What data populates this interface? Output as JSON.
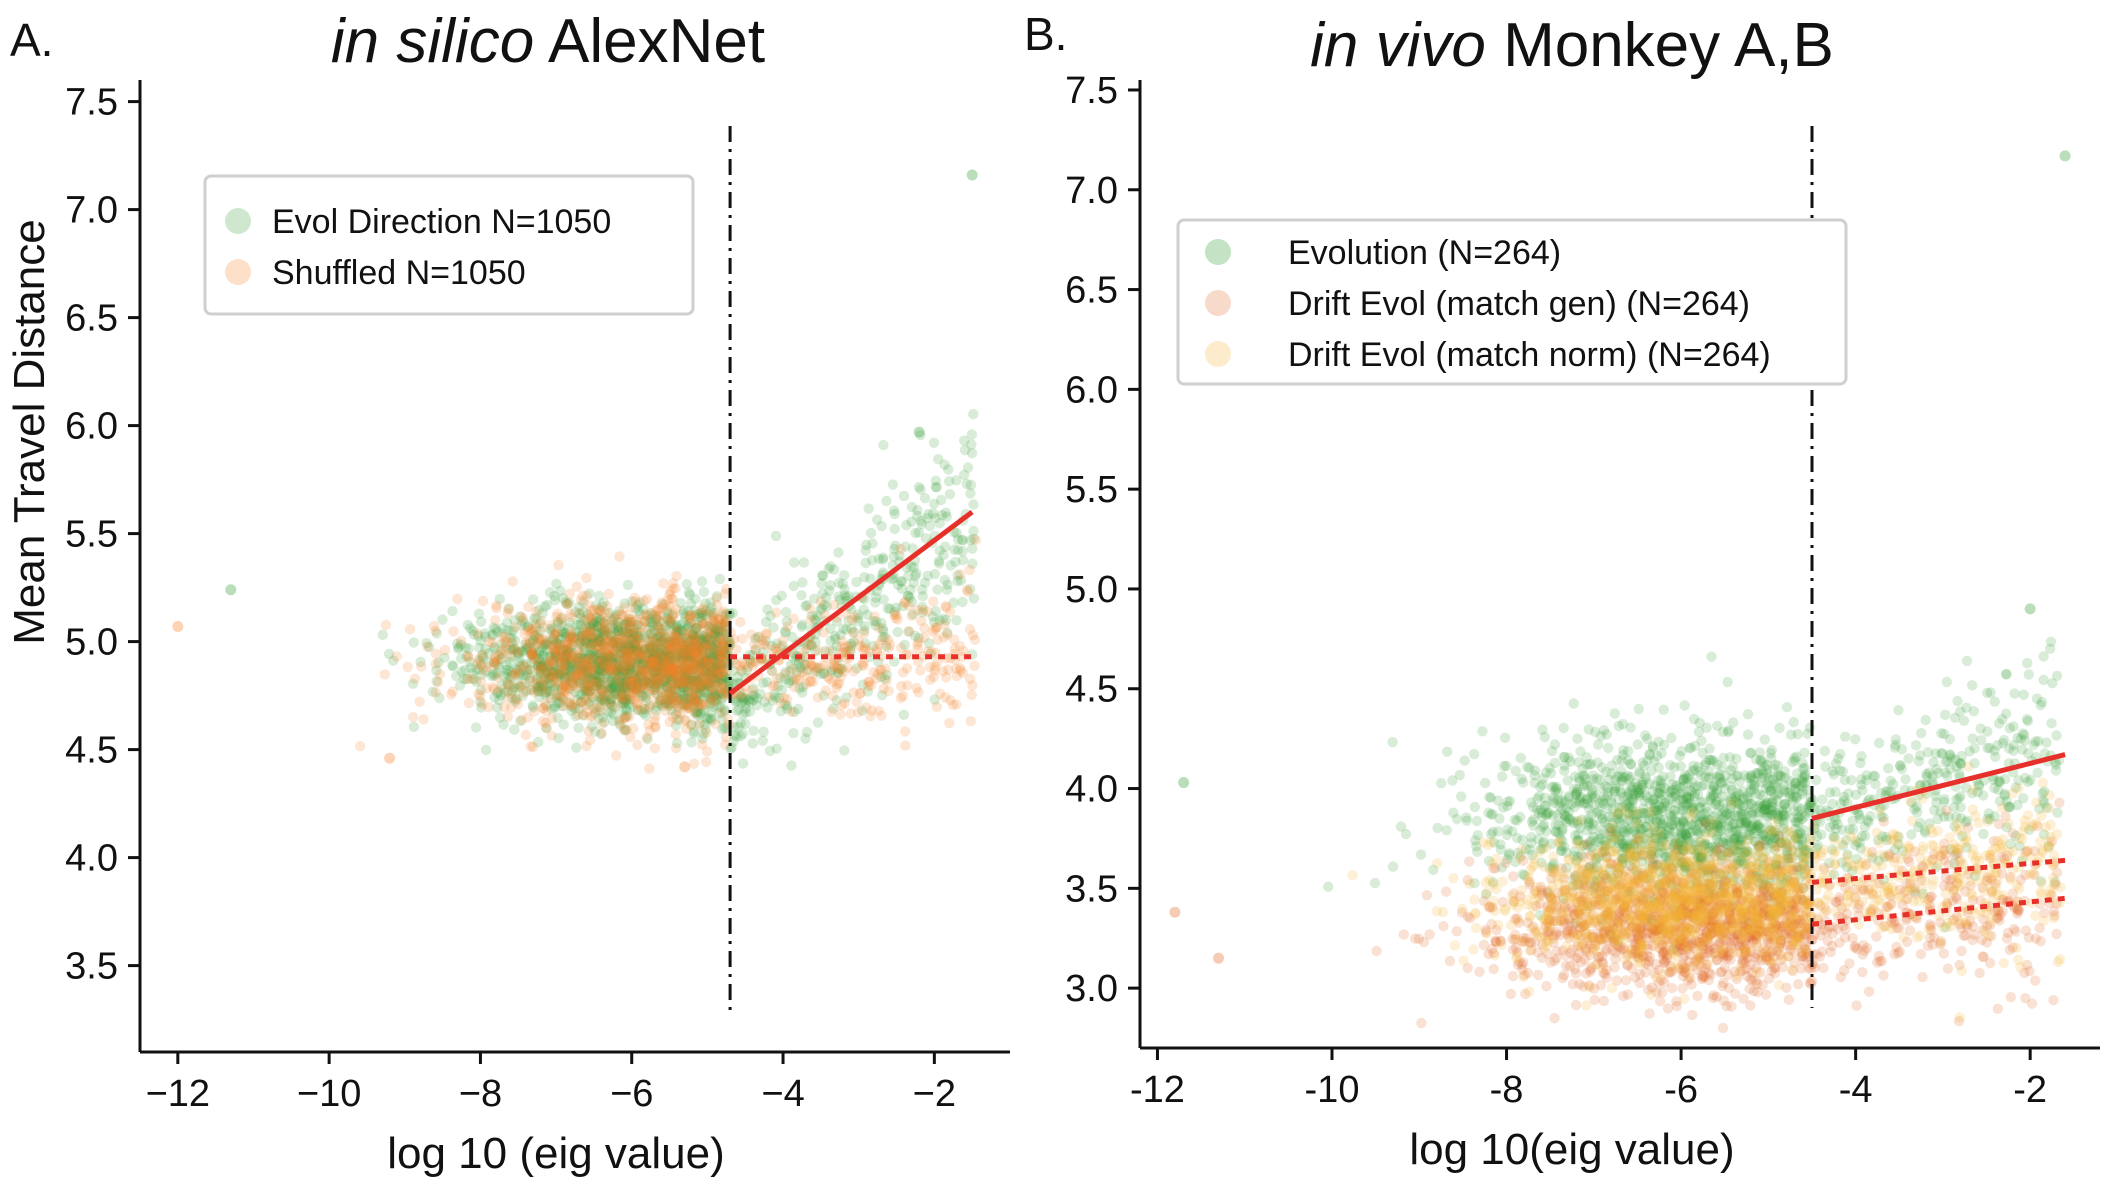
{
  "chart_data": [
    {
      "panel": "A.",
      "type": "scatter",
      "title_italic": "in silico",
      "title_rest": " AlexNet",
      "xlabel": "log 10 (eig value)",
      "ylabel": "Mean Travel Distance",
      "xlim": [
        -12.5,
        -1.0
      ],
      "ylim": [
        3.1,
        7.6
      ],
      "xticks": [
        -12,
        -10,
        -8,
        -6,
        -4,
        -2
      ],
      "xtick_labels": [
        "−12",
        "−10",
        "−8",
        "−6",
        "−4",
        "−2"
      ],
      "yticks": [
        3.5,
        4.0,
        4.5,
        5.0,
        5.5,
        6.0,
        6.5,
        7.0,
        7.5
      ],
      "ytick_labels": [
        "3.5",
        "4.0",
        "4.5",
        "5.0",
        "5.5",
        "6.0",
        "6.5",
        "7.0",
        "7.5"
      ],
      "grid": false,
      "legend_position": "top-left",
      "cutoff_x": -4.7,
      "series": [
        {
          "name": "Evol Direction N=1050",
          "color": "#3a9e3a",
          "cloud": {
            "left_center": 4.9,
            "left_spread": 0.13,
            "right_start": 4.72,
            "right_end": 5.55,
            "right_spread": 0.2
          }
        },
        {
          "name": "Shuffled N=1050",
          "color": "#f5822a",
          "cloud": {
            "left_center": 4.9,
            "left_spread": 0.15,
            "right_start": 4.9,
            "right_end": 4.93,
            "right_spread": 0.12
          }
        }
      ],
      "outliers": [
        {
          "x": -1.5,
          "y": 7.16,
          "series": 0
        },
        {
          "x": -11.3,
          "y": 5.24,
          "series": 0
        },
        {
          "x": -12.0,
          "y": 5.07,
          "series": 1
        },
        {
          "x": -9.2,
          "y": 4.46,
          "series": 1
        },
        {
          "x": -5.3,
          "y": 4.42,
          "series": 1
        },
        {
          "x": -2.2,
          "y": 5.97,
          "series": 0
        }
      ],
      "fit_lines": [
        {
          "style": "solid",
          "color": "#e8302a",
          "x": [
            -4.7,
            -1.5
          ],
          "y": [
            4.76,
            5.6
          ]
        },
        {
          "style": "dotted",
          "color": "#e8302a",
          "x": [
            -4.7,
            -1.5
          ],
          "y": [
            4.93,
            4.93
          ]
        }
      ]
    },
    {
      "panel": "B.",
      "type": "scatter",
      "title_italic": "in vivo",
      "title_rest": " Monkey A,B",
      "xlabel": "log 10(eig value)",
      "ylabel": "",
      "xlim": [
        -12.2,
        -1.2
      ],
      "ylim": [
        2.7,
        7.55
      ],
      "xticks": [
        -12,
        -10,
        -8,
        -6,
        -4,
        -2
      ],
      "xtick_labels": [
        "-12",
        "-10",
        "-8",
        "-6",
        "-4",
        "-2"
      ],
      "yticks": [
        3.0,
        3.5,
        4.0,
        4.5,
        5.0,
        5.5,
        6.0,
        6.5,
        7.0,
        7.5
      ],
      "ytick_labels": [
        "3.0",
        "3.5",
        "4.0",
        "4.5",
        "5.0",
        "5.5",
        "6.0",
        "6.5",
        "7.0",
        "7.5"
      ],
      "grid": false,
      "legend_position": "top-left",
      "cutoff_x": -4.5,
      "series": [
        {
          "name": "Evolution (N=264)",
          "color": "#3a9e3a",
          "cloud": {
            "left_center": 3.85,
            "left_spread": 0.2,
            "right_start": 3.85,
            "right_end": 4.17,
            "right_spread": 0.2
          }
        },
        {
          "name": "Drift Evol (match gen) (N=264)",
          "color": "#e36a2a",
          "cloud": {
            "left_center": 3.3,
            "left_spread": 0.16,
            "right_start": 3.32,
            "right_end": 3.45,
            "right_spread": 0.16
          }
        },
        {
          "name": "Drift Evol (match norm) (N=264)",
          "color": "#f3b530",
          "cloud": {
            "left_center": 3.45,
            "left_spread": 0.16,
            "right_start": 3.53,
            "right_end": 3.64,
            "right_spread": 0.16
          }
        }
      ],
      "outliers": [
        {
          "x": -1.6,
          "y": 7.17,
          "series": 0
        },
        {
          "x": -2.0,
          "y": 4.9,
          "series": 0
        },
        {
          "x": -11.7,
          "y": 4.03,
          "series": 0
        },
        {
          "x": -11.8,
          "y": 3.38,
          "series": 1
        },
        {
          "x": -11.3,
          "y": 3.15,
          "series": 1
        }
      ],
      "fit_lines": [
        {
          "style": "solid",
          "color": "#e8302a",
          "x": [
            -4.5,
            -1.6
          ],
          "y": [
            3.85,
            4.17
          ]
        },
        {
          "style": "dotted",
          "color": "#e8302a",
          "x": [
            -4.5,
            -1.6
          ],
          "y": [
            3.53,
            3.64
          ]
        },
        {
          "style": "dotted",
          "color": "#e8302a",
          "x": [
            -4.5,
            -1.6
          ],
          "y": [
            3.32,
            3.45
          ]
        }
      ]
    }
  ]
}
